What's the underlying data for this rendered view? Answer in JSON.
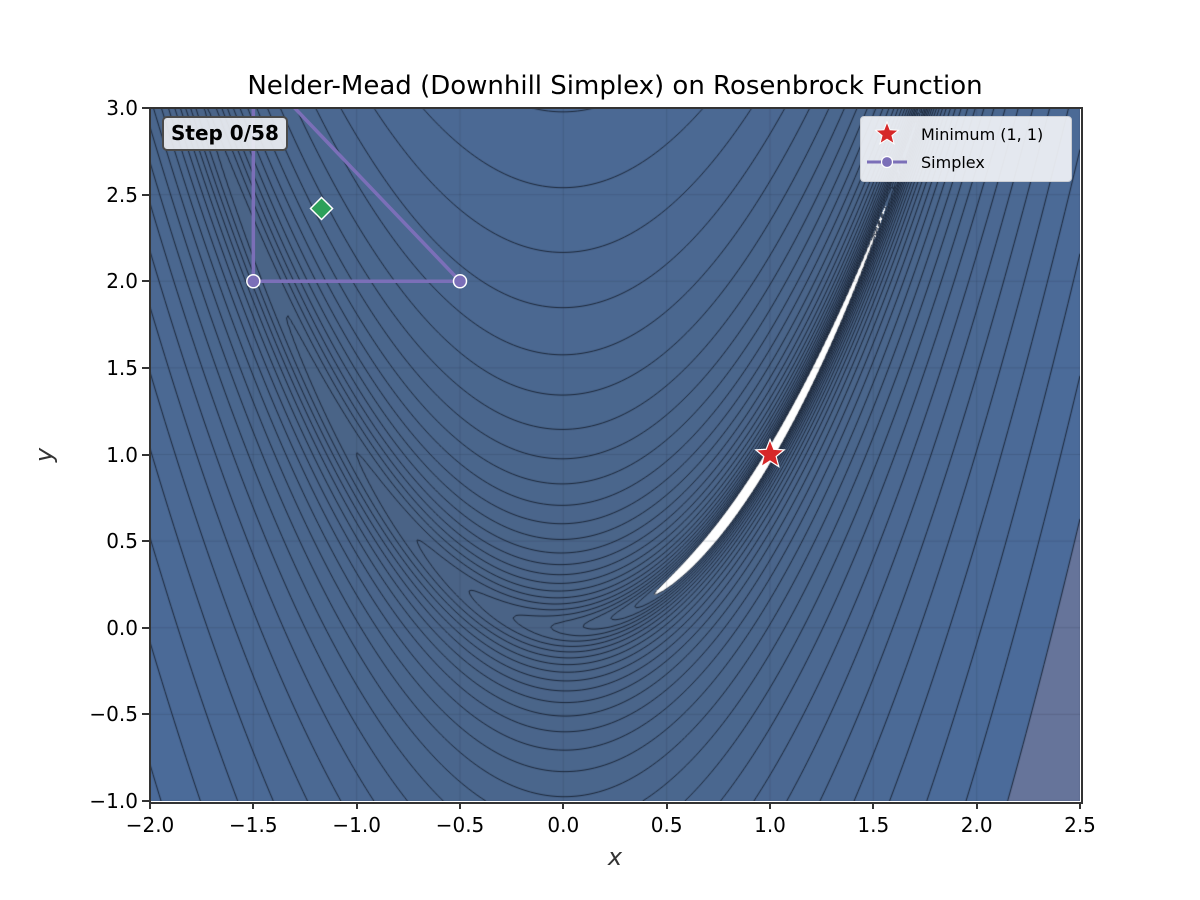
{
  "chart": {
    "title": "Nelder-Mead (Downhill Simplex) on Rosenbrock Function",
    "xlabel": "x",
    "ylabel": "y",
    "step_label": "Step 0/58",
    "legend": {
      "items": [
        {
          "label": "Minimum (1, 1)",
          "marker": "star",
          "color": "#d62728"
        },
        {
          "label": "Simplex",
          "marker": "line-circle",
          "color": "#7b6fb8"
        }
      ]
    },
    "x_ticks": [
      "−2.0",
      "−1.5",
      "−1.0",
      "−0.5",
      "0.0",
      "0.5",
      "1.0",
      "1.5",
      "2.0",
      "2.5"
    ],
    "y_ticks": [
      "3.0",
      "2.5",
      "2.0",
      "1.5",
      "1.0",
      "0.5",
      "0.0",
      "−0.5",
      "−1.0"
    ]
  },
  "chart_data": {
    "type": "contour",
    "title": "Nelder-Mead (Downhill Simplex) on Rosenbrock Function",
    "xlabel": "x",
    "ylabel": "y",
    "xlim": [
      -2.0,
      2.5
    ],
    "ylim": [
      -1.0,
      3.0
    ],
    "x_tick_values": [
      -2.0,
      -1.5,
      -1.0,
      -0.5,
      0.0,
      0.5,
      1.0,
      1.5,
      2.0,
      2.5
    ],
    "y_tick_values": [
      -1.0,
      -0.5,
      0.0,
      0.5,
      1.0,
      1.5,
      2.0,
      2.5,
      3.0
    ],
    "grid": true,
    "function": {
      "name": "Rosenbrock",
      "a": 1,
      "b": 100,
      "formula": "(a - x)^2 + b*(y - x^2)^2"
    },
    "contour_levels_log10": {
      "min": -0.5,
      "max": 3.5,
      "count": 30
    },
    "colors": {
      "lowest_band": "#ffffff",
      "low": "#4a6385",
      "high": "#4b6c9c",
      "highest_band": "#66749a",
      "contour_line": "#1b2638"
    },
    "minimum": {
      "x": 1.0,
      "y": 1.0,
      "label": "Minimum (1, 1)",
      "color": "#d62728"
    },
    "simplex": {
      "step": 0,
      "total_steps": 58,
      "vertices": [
        [
          -1.5,
          2.0
        ],
        [
          -0.5,
          2.0
        ],
        [
          -1.5,
          3.25
        ]
      ],
      "color": "#7b6fb8"
    },
    "centroid": {
      "x": -1.17,
      "y": 2.42,
      "marker": "diamond",
      "color": "#2ca05a"
    },
    "legend_position": "upper right"
  }
}
